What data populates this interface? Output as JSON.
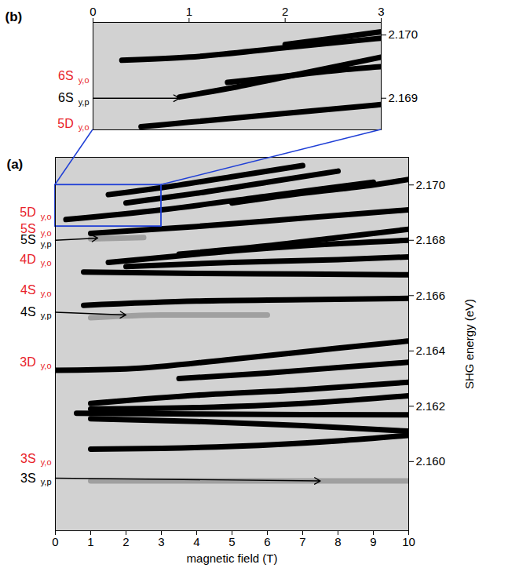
{
  "chart_data": [
    {
      "type": "line",
      "title": "(b)",
      "xlim": [
        0,
        3
      ],
      "xticks": [
        0,
        1,
        2,
        3
      ],
      "ylim": [
        2.1685,
        2.1702
      ],
      "yticks": [
        {
          "value": 2.169,
          "label": "2.169"
        },
        {
          "value": 2.17,
          "label": "2.170"
        }
      ],
      "series": [
        {
          "color": "#000000",
          "x": [
            0.5,
            1,
            2,
            3
          ],
          "values": [
            2.16855,
            2.16862,
            2.16876,
            2.1689
          ]
        },
        {
          "color": "#000000",
          "x": [
            0.9,
            1.5,
            2.2,
            3
          ],
          "values": [
            2.16902,
            2.16918,
            2.1694,
            2.16965
          ]
        },
        {
          "color": "#000000",
          "x": [
            1.4,
            2,
            2.6,
            3
          ],
          "values": [
            2.16925,
            2.16935,
            2.16945,
            2.1695
          ]
        },
        {
          "color": "#000000",
          "x": [
            0.3,
            1,
            2,
            3
          ],
          "values": [
            2.1696,
            2.16965,
            2.1698,
            2.16995
          ]
        },
        {
          "color": "#000000",
          "x": [
            2,
            2.5,
            3
          ],
          "values": [
            2.16985,
            2.16995,
            2.17005
          ]
        }
      ],
      "annotations": [
        {
          "text": "6S",
          "sub": "y,o",
          "y": 2.16935,
          "color": "#e8222a"
        },
        {
          "text": "6S",
          "sub": "y,p",
          "y": 2.169,
          "color": "#000000",
          "arrow_to": [
            0.9,
            2.169
          ]
        },
        {
          "text": "5D",
          "sub": "y,o",
          "y": 2.1686,
          "color": "#e8222a"
        }
      ]
    },
    {
      "type": "line",
      "title": "(a)",
      "x_label": "magnetic field (T)",
      "y_label": "SHG energy (eV)",
      "xlim": [
        0,
        10
      ],
      "xticks": [
        0,
        1,
        2,
        3,
        4,
        5,
        6,
        7,
        8,
        9,
        10
      ],
      "ylim": [
        2.1575,
        2.171
      ],
      "yticks": [
        {
          "value": 2.16,
          "label": "2.160"
        },
        {
          "value": 2.162,
          "label": "2.162"
        },
        {
          "value": 2.164,
          "label": "2.164"
        },
        {
          "value": 2.166,
          "label": "2.166"
        },
        {
          "value": 2.168,
          "label": "2.168"
        },
        {
          "value": 2.17,
          "label": "2.170"
        }
      ],
      "zoom_box": {
        "x": [
          0,
          3
        ],
        "y": [
          2.1685,
          2.17
        ],
        "color": "#1f3fd6"
      },
      "series": [
        {
          "color": "#a0a0a0",
          "x": [
            1,
            4,
            7,
            10
          ],
          "values": [
            2.1593,
            2.1593,
            2.1593,
            2.1593
          ]
        },
        {
          "color": "#000000",
          "x": [
            1,
            3,
            5,
            8,
            10
          ],
          "values": [
            2.16045,
            2.16048,
            2.16055,
            2.16075,
            2.16095
          ]
        },
        {
          "color": "#000000",
          "x": [
            1,
            4,
            7,
            10
          ],
          "values": [
            2.16155,
            2.16145,
            2.1613,
            2.1611
          ]
        },
        {
          "color": "#000000",
          "x": [
            0.6,
            4,
            7,
            10
          ],
          "values": [
            2.16175,
            2.16172,
            2.1617,
            2.16169
          ]
        },
        {
          "color": "#000000",
          "x": [
            1,
            4,
            7,
            10
          ],
          "values": [
            2.1619,
            2.16195,
            2.1621,
            2.16238
          ]
        },
        {
          "color": "#000000",
          "x": [
            1,
            4,
            7,
            10
          ],
          "values": [
            2.1621,
            2.1624,
            2.1626,
            2.16287
          ]
        },
        {
          "color": "#000000",
          "x": [
            3.5,
            6,
            8,
            10
          ],
          "values": [
            2.163,
            2.1632,
            2.1634,
            2.16359
          ]
        },
        {
          "color": "#000000",
          "x": [
            0,
            2,
            5,
            8,
            10
          ],
          "values": [
            2.1633,
            2.16335,
            2.1637,
            2.1641,
            2.16436
          ]
        },
        {
          "color": "#a0a0a0",
          "x": [
            1,
            3,
            6
          ],
          "values": [
            2.1652,
            2.1653,
            2.1653
          ]
        },
        {
          "color": "#000000",
          "x": [
            0.8,
            4,
            7,
            10
          ],
          "values": [
            2.16565,
            2.1658,
            2.16585,
            2.1659
          ]
        },
        {
          "color": "#000000",
          "x": [
            0.8,
            4,
            7,
            10
          ],
          "values": [
            2.16685,
            2.1668,
            2.16678,
            2.16675
          ]
        },
        {
          "color": "#000000",
          "x": [
            2,
            5,
            8,
            10
          ],
          "values": [
            2.16705,
            2.1672,
            2.1673,
            2.1674
          ]
        },
        {
          "color": "#000000",
          "x": [
            1.5,
            4,
            7,
            10
          ],
          "values": [
            2.1672,
            2.1675,
            2.1678,
            2.168
          ]
        },
        {
          "color": "#000000",
          "x": [
            3.5,
            6,
            8,
            10
          ],
          "values": [
            2.1675,
            2.1678,
            2.1681,
            2.1684
          ]
        },
        {
          "color": "#a0a0a0",
          "x": [
            1,
            2.5
          ],
          "values": [
            2.16805,
            2.1681
          ]
        },
        {
          "color": "#000000",
          "x": [
            1,
            4,
            7,
            10
          ],
          "values": [
            2.16825,
            2.1685,
            2.1688,
            2.1691
          ]
        },
        {
          "color": "#000000",
          "x": [
            0.3,
            3,
            6,
            9
          ],
          "values": [
            2.16875,
            2.1691,
            2.1696,
            2.1701
          ]
        },
        {
          "color": "#000000",
          "x": [
            2,
            4,
            6,
            8
          ],
          "values": [
            2.16935,
            2.1697,
            2.1701,
            2.1705
          ]
        },
        {
          "color": "#000000",
          "x": [
            1.5,
            3,
            5,
            7
          ],
          "values": [
            2.16965,
            2.1699,
            2.1703,
            2.1707
          ]
        },
        {
          "color": "#000000",
          "x": [
            5,
            7,
            9,
            10
          ],
          "values": [
            2.16935,
            2.1697,
            2.17,
            2.1702
          ]
        }
      ],
      "annotations": [
        {
          "text": "3S",
          "sub": "y,o",
          "y": 2.1601,
          "color": "#e8222a"
        },
        {
          "text": "3S",
          "sub": "y,p",
          "y": 2.1594,
          "color": "#000000",
          "arrow_to": [
            7.5,
            2.1593
          ]
        },
        {
          "text": "3D",
          "sub": "y,o",
          "y": 2.1636,
          "color": "#e8222a"
        },
        {
          "text": "4S",
          "sub": "y,o",
          "y": 2.1662,
          "color": "#e8222a"
        },
        {
          "text": "4S",
          "sub": "y,p",
          "y": 2.1654,
          "color": "#000000",
          "arrow_to": [
            2,
            2.1653
          ]
        },
        {
          "text": "4D",
          "sub": "y,o",
          "y": 2.1673,
          "color": "#e8222a"
        },
        {
          "text": "5S",
          "sub": "y,o",
          "y": 2.1684,
          "color": "#e8222a"
        },
        {
          "text": "5S",
          "sub": "y,p",
          "y": 2.168,
          "color": "#000000",
          "arrow_to": [
            1.2,
            2.16808
          ]
        },
        {
          "text": "5D",
          "sub": "y,o",
          "y": 2.169,
          "color": "#e8222a"
        }
      ]
    }
  ]
}
